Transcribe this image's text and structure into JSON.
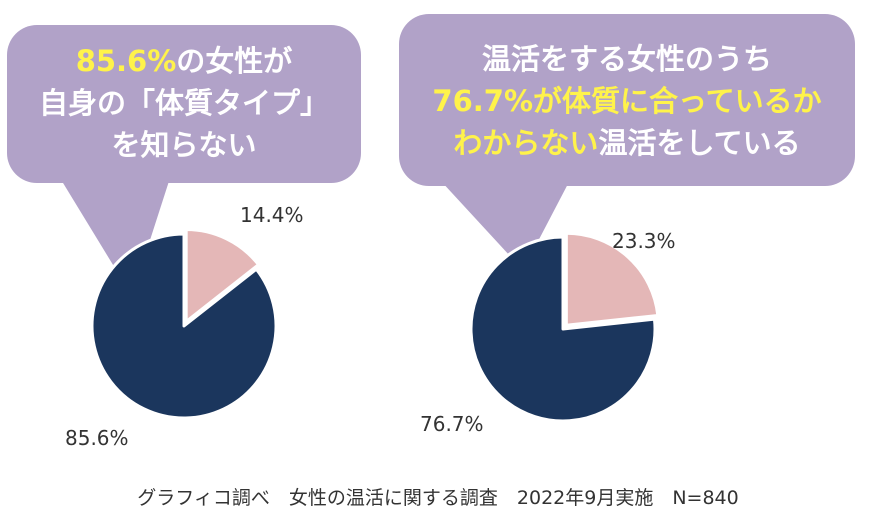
{
  "colors": {
    "bubble": "#b1a2c8",
    "majority": "#1b365d",
    "minority": "#e4b7b7",
    "highlight": "#fff34a",
    "label_text": "#333333"
  },
  "left_bubble": {
    "highlight": "85.6%",
    "line1_rest": "の女性が",
    "line2": "自身の「体質タイプ」",
    "line3": "を知らない"
  },
  "right_bubble": {
    "line1": "温活をする女性のうち",
    "line2_highlight": "76.7%",
    "line2_rest_highlight": "が体質に合っているか",
    "line3_highlight": "わからない",
    "line3_rest": "温活をしている"
  },
  "footer": "グラフィコ調べ　女性の温活に関する調査　2022年9月実施　N=840",
  "chart_data": [
    {
      "type": "pie",
      "slices": [
        {
          "value": 14.4,
          "label": "14.4%",
          "color": "#e4b7b7"
        },
        {
          "value": 85.6,
          "label": "85.6%",
          "color": "#1b365d"
        }
      ]
    },
    {
      "type": "pie",
      "slices": [
        {
          "value": 23.3,
          "label": "23.3%",
          "color": "#e4b7b7"
        },
        {
          "value": 76.7,
          "label": "76.7%",
          "color": "#1b365d"
        }
      ]
    }
  ]
}
